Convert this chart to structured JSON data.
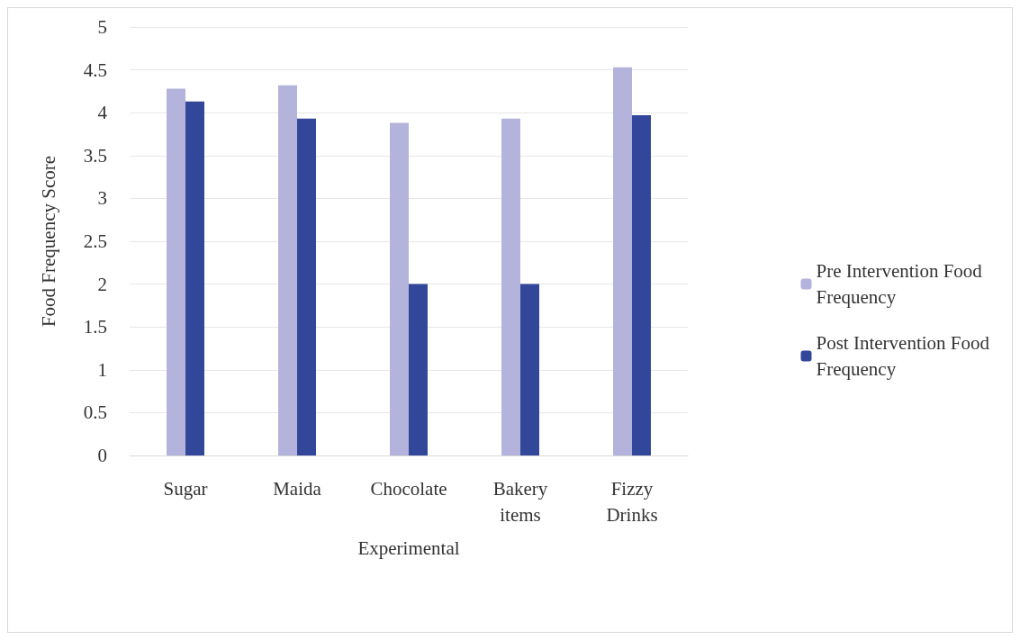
{
  "chart_data": {
    "type": "bar",
    "xlabel": "Experimental",
    "ylabel": "Food Frequency Score",
    "categories": [
      "Sugar",
      "Maida",
      "Chocolate",
      "Bakery\nitems",
      "Fizzy\nDrinks"
    ],
    "series": [
      {
        "name": "Pre Intervention Food\nFrequency",
        "color": "#b3b3dc",
        "values": [
          4.28,
          4.32,
          3.88,
          3.93,
          4.53
        ]
      },
      {
        "name": "Post Intervention Food\nFrequency",
        "color": "#33479a",
        "values": [
          4.13,
          3.93,
          2.0,
          2.0,
          3.97
        ]
      }
    ],
    "ylim": [
      0,
      5
    ],
    "yticks": [
      0,
      0.5,
      1,
      1.5,
      2,
      2.5,
      3,
      3.5,
      4,
      4.5,
      5
    ],
    "grid": "y",
    "legend": "right"
  }
}
